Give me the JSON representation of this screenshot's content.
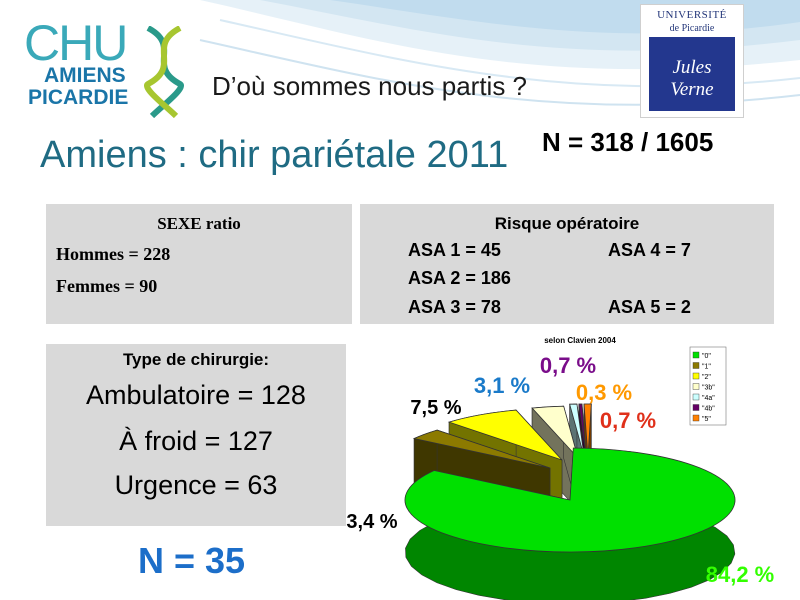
{
  "header": {
    "logo_left": {
      "line1": "CHU",
      "line2": "AMIENS",
      "line3": "PICARDIE"
    },
    "logo_right": {
      "line1": "UNIVERSITÉ",
      "line2": "de Picardie",
      "signature": "Jules Verne"
    },
    "subtitle": "D’où sommes nous partis ?"
  },
  "title": "Amiens : chir pariétale 2011",
  "n_total": "N = 318 / 1605",
  "sexe": {
    "heading": "SEXE ratio",
    "hommes": "Hommes = 228",
    "femmes": "Femmes = 90"
  },
  "risque": {
    "heading": "Risque opératoire",
    "asa1": "ASA 1 = 45",
    "asa2": "ASA 2 = 186",
    "asa3": "ASA 3 = 78",
    "asa4": "ASA 4 = 7",
    "asa5": "ASA 5 = 2"
  },
  "type_chirurgie": {
    "heading": "Type de chirurgie:",
    "ambulatoire": "Ambulatoire = 128",
    "froid": "À froid = 127",
    "urgence": "Urgence = 63"
  },
  "n_small": "N = 35",
  "chart_data": {
    "type": "pie",
    "title": "selon Clavien 2004",
    "categories": [
      "\"0\"",
      "\"1\"",
      "\"2\"",
      "\"3b\"",
      "\"4a\"",
      "\"4b\"",
      "\"5\""
    ],
    "values": [
      84.2,
      3.4,
      7.5,
      3.1,
      0.7,
      0.3,
      0.7
    ],
    "labels": [
      "84,2 %",
      "3,4 %",
      "7,5 %",
      "3,1 %",
      "0,7 %",
      "0,3 %",
      "0,7 %"
    ],
    "colors": [
      "#00e000",
      "#8c7a00",
      "#ffff00",
      "#ffffcc",
      "#ccffff",
      "#660066",
      "#ff8000"
    ],
    "label_colors": [
      "#33ff00",
      "#000000",
      "#000000",
      "#1a7ac9",
      "#7a0d8a",
      "#ff9900",
      "#e0301a"
    ],
    "legend_position": "right"
  }
}
